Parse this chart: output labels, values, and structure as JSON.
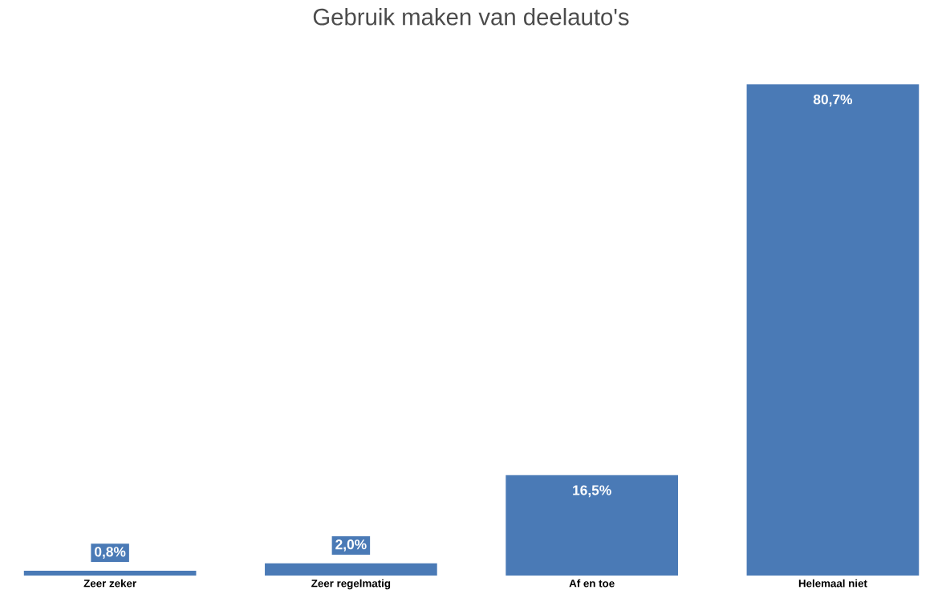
{
  "chart_data": {
    "type": "bar",
    "title": "Gebruik maken van deelauto's",
    "categories": [
      "Zeer zeker",
      "Zeer regelmatig",
      "Af en toe",
      "Helemaal niet"
    ],
    "values": [
      0.8,
      2.0,
      16.5,
      80.7
    ],
    "value_labels": [
      "0,8%",
      "2,0%",
      "16,5%",
      "80,7%"
    ],
    "color": "#4a7ab6"
  }
}
